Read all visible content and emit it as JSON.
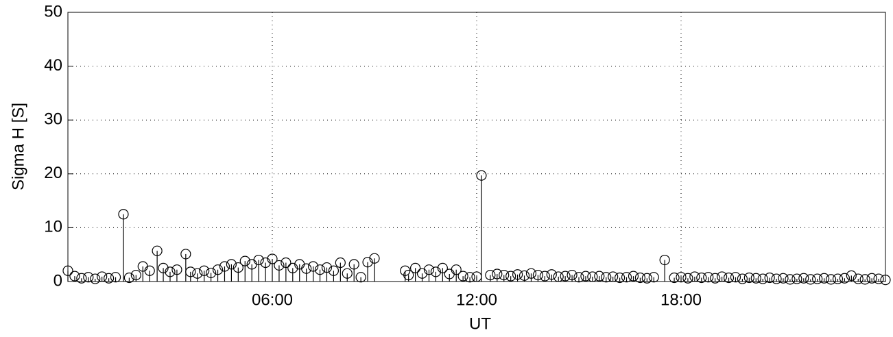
{
  "chart_data": {
    "type": "stem",
    "xlabel": "UT",
    "ylabel": "Sigma H [S]",
    "xlim": [
      0,
      24
    ],
    "ylim": [
      0,
      50
    ],
    "xticks": [
      {
        "value": 6,
        "label": "06:00"
      },
      {
        "value": 12,
        "label": "12:00"
      },
      {
        "value": 18,
        "label": "18:00"
      }
    ],
    "yticks": [
      0,
      10,
      20,
      30,
      40,
      50
    ],
    "grid": true,
    "color": "#000000",
    "x": [
      0,
      0.2,
      0.4,
      0.6,
      0.8,
      1.0,
      1.2,
      1.4,
      1.63,
      1.8,
      2.0,
      2.2,
      2.4,
      2.62,
      2.8,
      3.0,
      3.2,
      3.46,
      3.6,
      3.8,
      4.0,
      4.2,
      4.4,
      4.6,
      4.8,
      5.0,
      5.2,
      5.4,
      5.6,
      5.8,
      6.0,
      6.2,
      6.4,
      6.6,
      6.8,
      7.0,
      7.2,
      7.4,
      7.6,
      7.8,
      8.0,
      8.2,
      8.4,
      8.6,
      8.8,
      9.0,
      9.9,
      10.0,
      10.2,
      10.4,
      10.6,
      10.8,
      11.0,
      11.2,
      11.4,
      11.6,
      11.8,
      12.0,
      12.14,
      12.4,
      12.6,
      12.8,
      13.0,
      13.2,
      13.4,
      13.6,
      13.8,
      14.0,
      14.2,
      14.4,
      14.6,
      14.8,
      15.0,
      15.2,
      15.4,
      15.6,
      15.8,
      16.0,
      16.2,
      16.4,
      16.6,
      16.8,
      17.0,
      17.2,
      17.52,
      17.8,
      18.0,
      18.2,
      18.4,
      18.6,
      18.8,
      19.0,
      19.2,
      19.4,
      19.6,
      19.8,
      20.0,
      20.2,
      20.4,
      20.6,
      20.8,
      21.0,
      21.2,
      21.4,
      21.6,
      21.8,
      22.0,
      22.2,
      22.4,
      22.6,
      22.8,
      23.0,
      23.2,
      23.4,
      23.6,
      23.8,
      24.0
    ],
    "values": [
      2.0,
      1.0,
      0.6,
      0.8,
      0.5,
      0.9,
      0.6,
      0.8,
      12.5,
      0.7,
      1.2,
      2.8,
      2.0,
      5.7,
      2.5,
      1.8,
      2.2,
      5.1,
      1.8,
      1.5,
      2.0,
      1.6,
      2.2,
      2.8,
      3.2,
      2.6,
      3.8,
      3.2,
      4.0,
      3.5,
      4.2,
      3.0,
      3.5,
      2.5,
      3.2,
      2.4,
      2.8,
      2.2,
      2.6,
      2.0,
      3.5,
      1.5,
      3.2,
      0.8,
      3.6,
      4.3,
      2.0,
      1.2,
      2.5,
      1.5,
      2.2,
      1.8,
      2.5,
      1.4,
      2.2,
      1.0,
      0.8,
      0.9,
      19.7,
      1.2,
      1.4,
      1.2,
      1.0,
      1.3,
      1.1,
      1.5,
      1.2,
      1.0,
      1.3,
      0.9,
      1.0,
      1.2,
      0.8,
      1.0,
      0.9,
      1.0,
      0.8,
      0.9,
      0.7,
      0.8,
      1.0,
      0.7,
      0.6,
      0.8,
      4.0,
      0.7,
      0.8,
      0.6,
      0.9,
      0.7,
      0.8,
      0.6,
      0.9,
      0.7,
      0.8,
      0.5,
      0.7,
      0.6,
      0.5,
      0.7,
      0.5,
      0.6,
      0.4,
      0.5,
      0.6,
      0.4,
      0.5,
      0.6,
      0.4,
      0.5,
      0.6,
      1.1,
      0.5,
      0.4,
      0.6,
      0.5,
      0.3
    ]
  }
}
